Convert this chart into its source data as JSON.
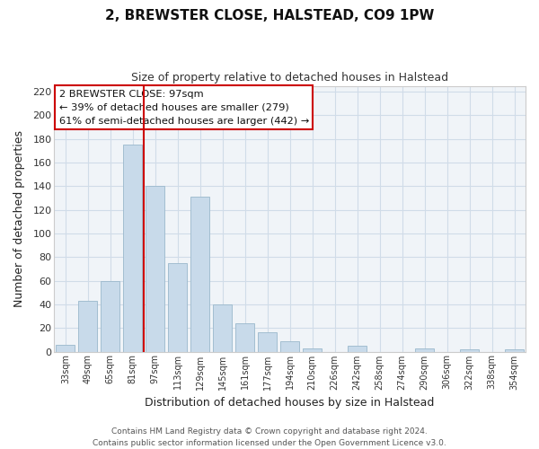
{
  "title": "2, BREWSTER CLOSE, HALSTEAD, CO9 1PW",
  "subtitle": "Size of property relative to detached houses in Halstead",
  "xlabel": "Distribution of detached houses by size in Halstead",
  "ylabel": "Number of detached properties",
  "bar_color": "#c8daea",
  "bar_edge_color": "#9ab8cc",
  "categories": [
    "33sqm",
    "49sqm",
    "65sqm",
    "81sqm",
    "97sqm",
    "113sqm",
    "129sqm",
    "145sqm",
    "161sqm",
    "177sqm",
    "194sqm",
    "210sqm",
    "226sqm",
    "242sqm",
    "258sqm",
    "274sqm",
    "290sqm",
    "306sqm",
    "322sqm",
    "338sqm",
    "354sqm"
  ],
  "values": [
    6,
    43,
    60,
    175,
    140,
    75,
    131,
    40,
    24,
    16,
    9,
    3,
    0,
    5,
    0,
    0,
    3,
    0,
    2,
    0,
    2
  ],
  "vline_x_index": 4,
  "vline_color": "#cc0000",
  "annotation_title": "2 BREWSTER CLOSE: 97sqm",
  "annotation_line1": "← 39% of detached houses are smaller (279)",
  "annotation_line2": "61% of semi-detached houses are larger (442) →",
  "ylim": [
    0,
    225
  ],
  "yticks": [
    0,
    20,
    40,
    60,
    80,
    100,
    120,
    140,
    160,
    180,
    200,
    220
  ],
  "footer1": "Contains HM Land Registry data © Crown copyright and database right 2024.",
  "footer2": "Contains public sector information licensed under the Open Government Licence v3.0.",
  "grid_color": "#d0dce8",
  "background_color": "#ffffff",
  "ax_bg_color": "#f0f4f8"
}
